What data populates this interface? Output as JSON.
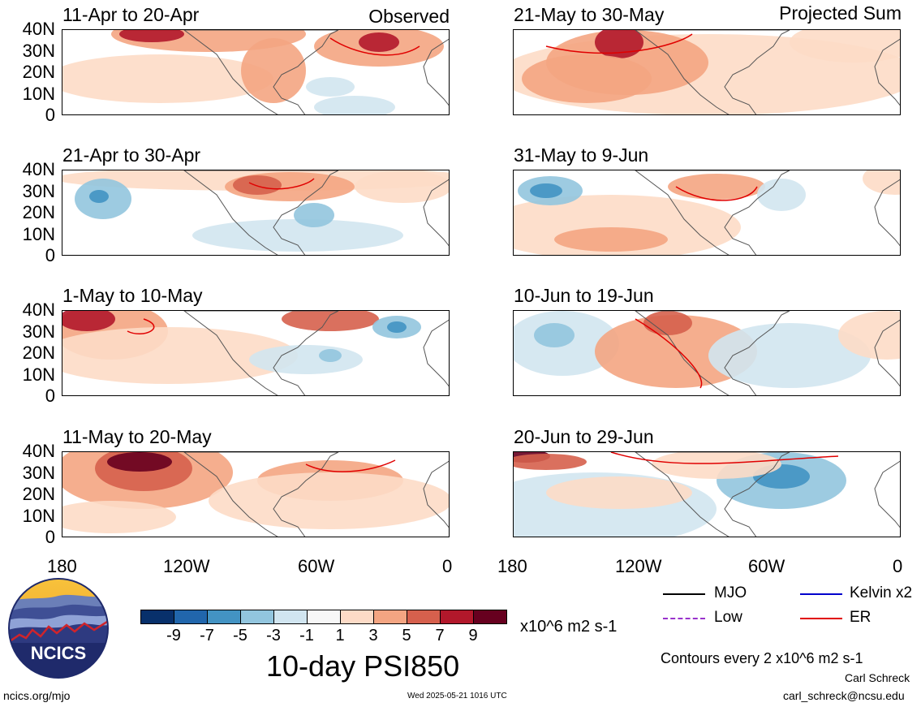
{
  "left_column_header": "Observed",
  "right_column_header": "Projected Sum",
  "panels": [
    {
      "title": "11-Apr to 20-Apr"
    },
    {
      "title": "21-Apr to 30-Apr"
    },
    {
      "title": "1-May to 10-May"
    },
    {
      "title": "11-May to 20-May"
    },
    {
      "title": "21-May to 30-May"
    },
    {
      "title": "31-May to 9-Jun"
    },
    {
      "title": "10-Jun to 19-Jun"
    },
    {
      "title": "20-Jun to 29-Jun"
    }
  ],
  "y_ticks": [
    "40N",
    "30N",
    "20N",
    "10N",
    "0"
  ],
  "x_ticks": [
    "180",
    "120W",
    "60W",
    "0"
  ],
  "colorbar": {
    "colors": [
      "#08306b",
      "#2166ac",
      "#4393c3",
      "#92c5de",
      "#d1e5f0",
      "#f7f7f7",
      "#fddbc7",
      "#f4a582",
      "#d6604d",
      "#b2182b",
      "#67001f"
    ],
    "labels": [
      "-9",
      "-7",
      "-5",
      "-3",
      "-1",
      "1",
      "3",
      "5",
      "7",
      "9"
    ],
    "units": "x10^6 m2 s-1"
  },
  "main_title": "10-day PSI850",
  "legend": [
    {
      "label": "MJO",
      "color": "#000000",
      "style": "solid"
    },
    {
      "label": "Kelvin x2",
      "color": "#0000cc",
      "style": "solid"
    },
    {
      "label": "Low",
      "color": "#9933cc",
      "style": "dashed"
    },
    {
      "label": "ER",
      "color": "#e00000",
      "style": "solid"
    }
  ],
  "contour_note": "Contours every 2 x10^6 m2 s-1",
  "author_name": "Carl Schreck",
  "author_email": "carl_schreck@ncsu.edu",
  "site_url": "ncics.org/mjo",
  "timestamp": "Wed 2025-05-21 1016 UTC",
  "logo_text": "NCICS"
}
